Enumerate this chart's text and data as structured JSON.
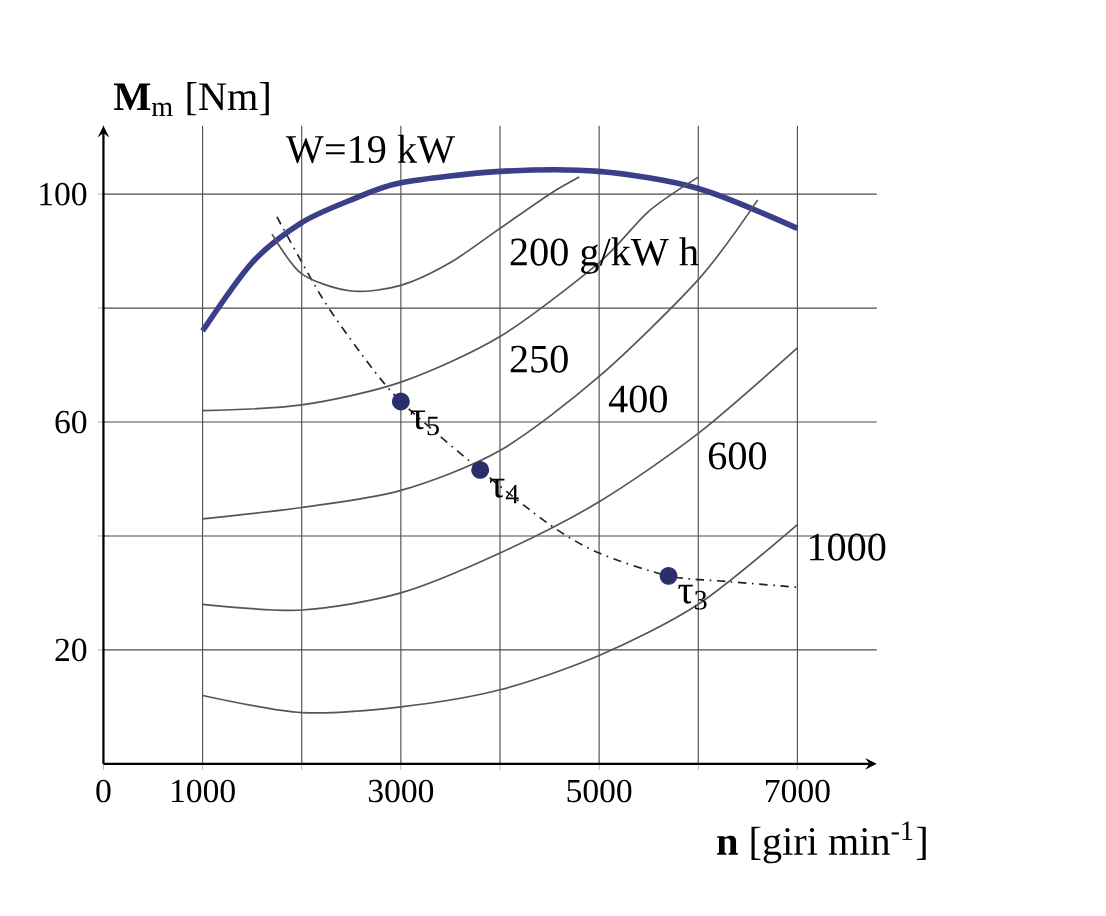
{
  "chart_data": {
    "type": "line",
    "xlabel": "**n** [giri min$^{-1}$]",
    "ylabel": "**M**$_{m}$ [Nm]",
    "xlim": [
      0,
      7800
    ],
    "ylim": [
      0,
      112
    ],
    "xticks": [
      {
        "value": 0,
        "label": "0"
      },
      1000,
      {
        "value": 2000,
        "label": null
      },
      3000,
      {
        "value": 4000,
        "label": null
      },
      5000,
      {
        "value": 6000,
        "label": null
      },
      7000
    ],
    "yticks": [
      {
        "value": 20,
        "label": "20"
      },
      {
        "value": 40,
        "label": null
      },
      60,
      {
        "value": 80,
        "label": null
      },
      100
    ],
    "grid": true,
    "series": [
      {
        "color": "#3a3f8a",
        "x": [
          1000,
          1500,
          2000,
          2500,
          3000,
          4000,
          5000,
          6000,
          7000
        ],
        "values": [
          76,
          88,
          95,
          99,
          102,
          104,
          104,
          101,
          94
        ]
      },
      {
        "color": "#222222",
        "line_style": "dashed",
        "x": [
          1750,
          2200,
          2600,
          3000,
          3800,
          4500,
          5000,
          5700,
          6300,
          7000
        ],
        "values": [
          96,
          82,
          72,
          63.6,
          51.6,
          42,
          37,
          33,
          32,
          31
        ]
      },
      {
        "color": "#555555",
        "x": [
          1700,
          2000,
          2500,
          3000,
          3500,
          4000,
          4500,
          4800
        ],
        "values": [
          93,
          86,
          83,
          84,
          88,
          94,
          100,
          103
        ]
      },
      {
        "color": "#555555",
        "x": [
          1000,
          2000,
          3000,
          4000,
          5000,
          5500,
          6000
        ],
        "values": [
          62,
          63,
          67,
          75,
          88,
          97,
          103
        ]
      },
      {
        "color": "#555555",
        "x": [
          1000,
          2000,
          3000,
          4000,
          5000,
          6000,
          6600
        ],
        "values": [
          43,
          45,
          48,
          55,
          68,
          85,
          99
        ]
      },
      {
        "color": "#555555",
        "x": [
          1000,
          2000,
          3000,
          4000,
          5000,
          6000,
          7000
        ],
        "values": [
          28,
          27,
          30,
          37,
          46,
          58,
          73
        ]
      },
      {
        "color": "#555555",
        "x": [
          1000,
          2000,
          3000,
          4000,
          5000,
          6000,
          7000
        ],
        "values": [
          12,
          9,
          10,
          13,
          19,
          28,
          42
        ]
      },
      {
        "type": "scatter",
        "color": "#2a2f6a",
        "x": [
          3000,
          3800,
          5700
        ],
        "values": [
          63.6,
          51.6,
          33
        ]
      }
    ],
    "annotations": [
      {
        "text": "W=19 kW",
        "x": 1750,
        "y": 96
      },
      {
        "text": "200  g/kW h",
        "x": 4000,
        "y": 94
      },
      {
        "text": "250",
        "x": 4000,
        "y": 75
      },
      {
        "text": "400",
        "x": 5000,
        "y": 68
      },
      {
        "text": "600",
        "x": 6000,
        "y": 58
      },
      {
        "text": "1000",
        "x": 7000,
        "y": 42
      },
      {
        "text": "τ$_{5}$",
        "x": 3000,
        "y": 63.6
      },
      {
        "text": "τ$_{4}$",
        "x": 3800,
        "y": 51.6
      },
      {
        "text": "τ$_{3}$",
        "x": 5700,
        "y": 33
      }
    ]
  }
}
